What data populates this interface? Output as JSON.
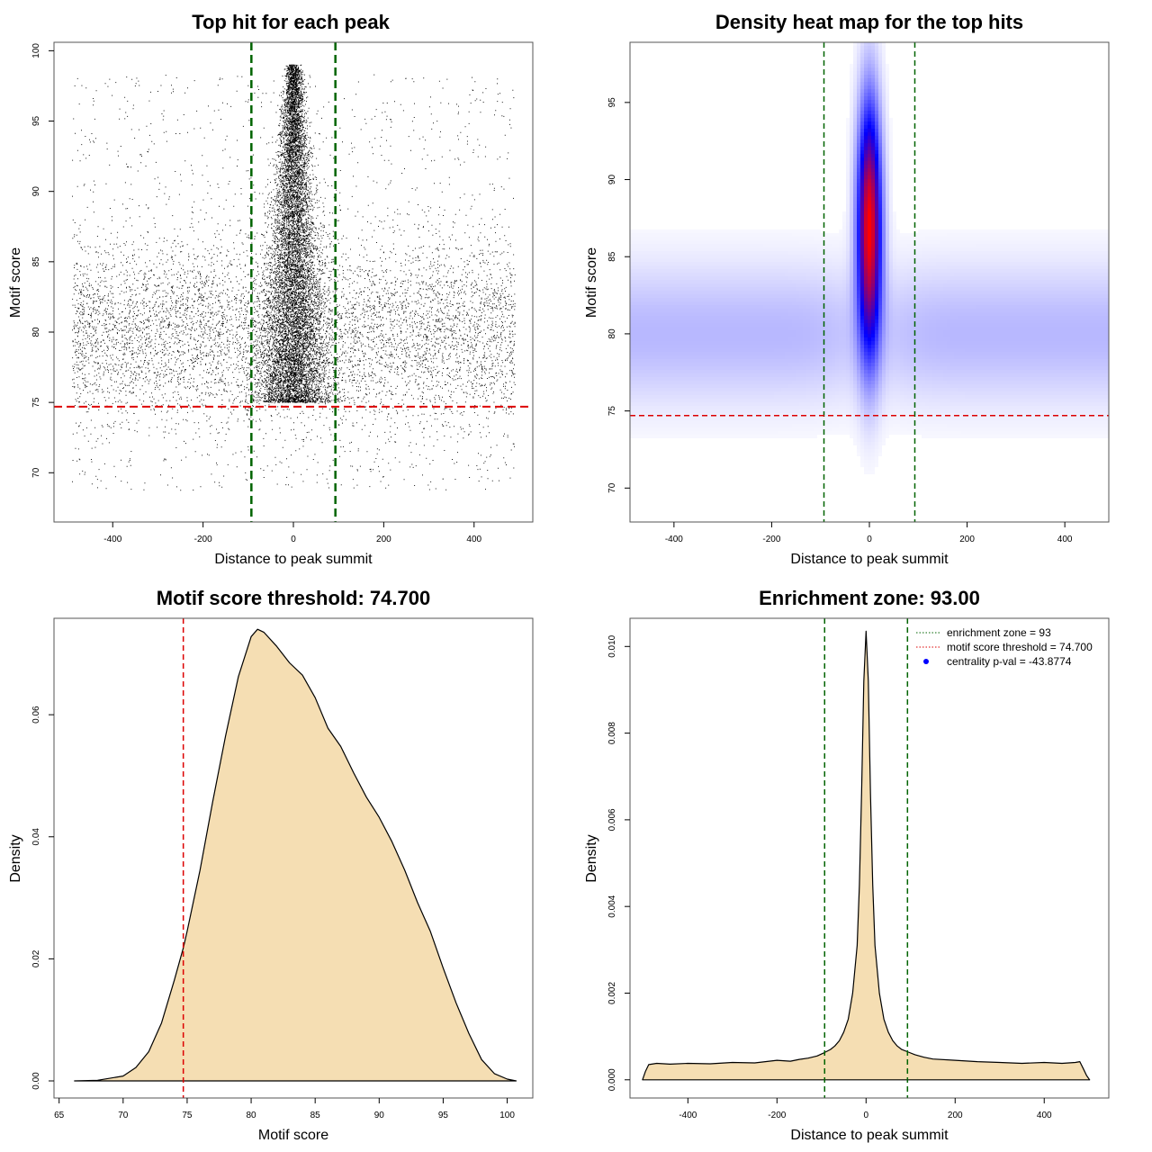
{
  "chart_data": [
    {
      "id": "scatter",
      "type": "scatter",
      "title": "Top hit for each peak",
      "xlabel": "Distance to peak summit",
      "ylabel": "Motif score",
      "xlim": [
        -530,
        530
      ],
      "ylim": [
        66.5,
        100.6
      ],
      "xticks": [
        -400,
        -200,
        0,
        200,
        400
      ],
      "yticks": [
        70,
        75,
        80,
        85,
        90,
        95,
        100
      ],
      "background_band": {
        "x": [
          -490,
          490
        ],
        "mean": 80,
        "sd": 3.2
      },
      "central_cluster": {
        "x_sd": 26,
        "y_range": [
          75,
          99
        ]
      },
      "sparse_range": [
        68.7,
        98.3
      ],
      "vlines": [
        -93,
        93
      ],
      "vline_color": "#006400",
      "hline": 74.7,
      "hline_color": "#DD0000"
    },
    {
      "id": "heatmap",
      "type": "heatmap",
      "title": "Density heat map for the top hits",
      "xlabel": "Distance to peak summit",
      "ylabel": "Motif score",
      "xlim": [
        -490,
        490
      ],
      "ylim": [
        67.8,
        98.9
      ],
      "xticks": [
        -400,
        -200,
        0,
        200,
        400
      ],
      "yticks": [
        70,
        75,
        80,
        85,
        90,
        95
      ],
      "hotspot": {
        "x": 0,
        "y": 87,
        "x_sd": 17,
        "y_sd": 5.5
      },
      "band": {
        "y": 80,
        "y_sd": 3.2
      },
      "colors": [
        "#FFFFFF",
        "#0000FF",
        "#FF0000"
      ],
      "vlines": [
        -93,
        93
      ],
      "vline_color": "#006400",
      "hline": 74.7,
      "hline_color": "#DD0000"
    },
    {
      "id": "score_density",
      "type": "area",
      "title": "Motif score threshold: 74.700",
      "xlabel": "Motif score",
      "ylabel": "Density",
      "xlim": [
        64.6,
        102.0
      ],
      "ylim": [
        -0.0028,
        0.0758
      ],
      "xticks": [
        65,
        70,
        75,
        80,
        85,
        90,
        95,
        100
      ],
      "yticks": [
        0.0,
        0.02,
        0.04,
        0.06
      ],
      "ytick_labels": [
        "0.00",
        "0.02",
        "0.04",
        "0.06"
      ],
      "x": [
        66.2,
        68,
        70,
        71,
        72,
        73,
        74,
        74.7,
        75,
        76,
        77,
        78,
        79,
        80,
        80.5,
        81,
        82,
        83,
        84,
        85,
        86,
        87,
        88,
        89,
        90,
        91,
        92,
        93,
        94,
        95,
        96,
        97,
        98,
        99,
        100,
        100.7
      ],
      "y": [
        0,
        0.0001,
        0.0008,
        0.0022,
        0.0048,
        0.0095,
        0.0165,
        0.0218,
        0.0245,
        0.0345,
        0.0458,
        0.0565,
        0.0662,
        0.0728,
        0.074,
        0.0735,
        0.0712,
        0.0685,
        0.0665,
        0.0628,
        0.0578,
        0.0548,
        0.0505,
        0.0465,
        0.0432,
        0.0392,
        0.0345,
        0.0292,
        0.0245,
        0.0185,
        0.0128,
        0.0078,
        0.0035,
        0.0012,
        0.0003,
        0
      ],
      "fill": "#F5DEB3",
      "vline": 74.7,
      "vline_color": "#DD0000"
    },
    {
      "id": "distance_density",
      "type": "area",
      "title": "Enrichment zone: 93.00",
      "xlabel": "Distance to peak summit",
      "ylabel": "Density",
      "xlim": [
        -530,
        545
      ],
      "ylim": [
        -0.00042,
        0.01065
      ],
      "xticks": [
        -400,
        -200,
        0,
        200,
        400
      ],
      "yticks": [
        0.0,
        0.002,
        0.004,
        0.006,
        0.008,
        0.01
      ],
      "ytick_labels": [
        "0.000",
        "0.002",
        "0.004",
        "0.006",
        "0.008",
        "0.010"
      ],
      "x": [
        -502,
        -495,
        -488,
        -470,
        -440,
        -400,
        -350,
        -300,
        -250,
        -200,
        -170,
        -150,
        -130,
        -110,
        -95,
        -80,
        -70,
        -60,
        -50,
        -40,
        -30,
        -20,
        -15,
        -10,
        -5,
        0,
        5,
        10,
        15,
        20,
        30,
        40,
        50,
        60,
        70,
        80,
        95,
        110,
        130,
        150,
        200,
        250,
        300,
        350,
        400,
        440,
        470,
        480,
        488,
        495,
        502
      ],
      "y": [
        0,
        0.0002,
        0.00035,
        0.00038,
        0.00036,
        0.00038,
        0.00037,
        0.0004,
        0.00039,
        0.00045,
        0.00043,
        0.00047,
        0.0005,
        0.00055,
        0.00062,
        0.0007,
        0.00078,
        0.0009,
        0.0011,
        0.0014,
        0.002,
        0.0031,
        0.0045,
        0.0066,
        0.0092,
        0.01035,
        0.0092,
        0.0066,
        0.0045,
        0.0031,
        0.002,
        0.0014,
        0.0011,
        0.0009,
        0.00078,
        0.0007,
        0.00064,
        0.00058,
        0.00052,
        0.00048,
        0.00045,
        0.00042,
        0.0004,
        0.00038,
        0.0004,
        0.00038,
        0.0004,
        0.00042,
        0.00025,
        0.0001,
        0
      ],
      "fill": "#F5DEB3",
      "vlines": [
        -93,
        93
      ],
      "vline_color": "#006400",
      "legend": {
        "position": "top-right",
        "entries": [
          {
            "label": "enrichment zone = 93",
            "color": "#006400",
            "style": "dotted-line"
          },
          {
            "label": "motif score threshold = 74.700",
            "color": "#DD0000",
            "style": "dotted-line"
          },
          {
            "label": "centrality p-val = -43.8774",
            "color": "#0000FF",
            "style": "point"
          }
        ]
      }
    }
  ]
}
